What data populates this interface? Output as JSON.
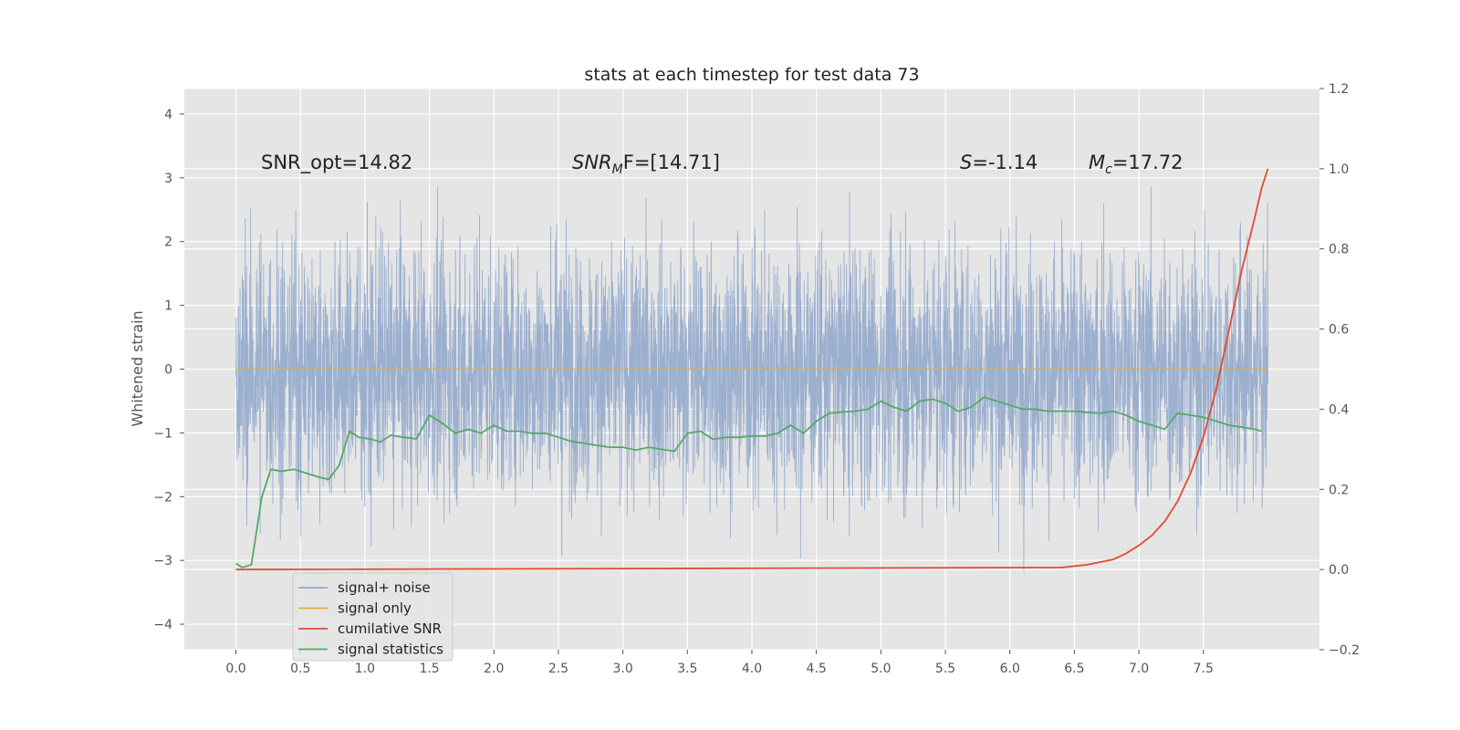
{
  "chart_data": {
    "type": "line",
    "title": "stats at each timestep for test data 73",
    "ylabel": "Whitened strain",
    "xlabel": "",
    "xlim": [
      -0.4,
      8.4
    ],
    "ylim": [
      -4.4,
      4.4
    ],
    "y2lim": [
      -0.2,
      1.2
    ],
    "grid": true,
    "legend_placement": "lower-left",
    "x_ticks": [
      "0.0",
      "0.5",
      "1.0",
      "1.5",
      "2.0",
      "2.5",
      "3.0",
      "3.5",
      "4.0",
      "4.5",
      "5.0",
      "5.5",
      "6.0",
      "6.5",
      "7.0",
      "7.5"
    ],
    "y_ticks": [
      "4",
      "3",
      "2",
      "1",
      "0",
      "−1",
      "−2",
      "−3",
      "−4"
    ],
    "y2_ticks": [
      "1.2",
      "1.0",
      "0.8",
      "0.6",
      "0.4",
      "0.2",
      "0.0",
      "−0.2"
    ],
    "annotations": {
      "snr_opt": "SNR_opt=14.82",
      "snr_mf_base": "SNR",
      "snr_mf_sub": "M",
      "snr_mf_tail": "F=[14.71]",
      "s_var": "S",
      "s_value": "=-1.14",
      "mc_base": "M",
      "mc_sub": "c",
      "mc_value": "=17.72"
    },
    "series": [
      {
        "name": "signal+ noise",
        "color": "#92a8cc",
        "axis": "left",
        "amplitude": 2.0,
        "x_range": [
          0.0,
          8.0
        ]
      },
      {
        "name": "signal only",
        "color": "#e5ae38",
        "axis": "left",
        "x": [
          0.0,
          8.0
        ],
        "values": [
          0.0,
          0.0
        ]
      },
      {
        "name": "cumilative SNR",
        "color": "#e24a33",
        "axis": "right",
        "x": [
          0.0,
          6.4,
          6.6,
          6.8,
          6.9,
          7.0,
          7.1,
          7.2,
          7.3,
          7.4,
          7.5,
          7.6,
          7.7,
          7.8,
          7.9,
          7.95,
          8.0
        ],
        "values": [
          0.0,
          0.005,
          0.012,
          0.025,
          0.04,
          0.06,
          0.085,
          0.12,
          0.17,
          0.24,
          0.33,
          0.45,
          0.6,
          0.75,
          0.88,
          0.95,
          1.0
        ]
      },
      {
        "name": "signal statistics",
        "color": "#55a868",
        "axis": "right",
        "x": [
          0.0,
          0.05,
          0.12,
          0.2,
          0.27,
          0.35,
          0.45,
          0.55,
          0.65,
          0.72,
          0.8,
          0.88,
          0.95,
          1.05,
          1.12,
          1.2,
          1.3,
          1.4,
          1.5,
          1.6,
          1.7,
          1.8,
          1.9,
          2.0,
          2.1,
          2.2,
          2.3,
          2.4,
          2.5,
          2.6,
          2.7,
          2.8,
          2.9,
          3.0,
          3.1,
          3.2,
          3.3,
          3.4,
          3.5,
          3.6,
          3.7,
          3.8,
          3.9,
          4.0,
          4.1,
          4.2,
          4.3,
          4.4,
          4.5,
          4.6,
          4.7,
          4.8,
          4.9,
          5.0,
          5.1,
          5.2,
          5.3,
          5.4,
          5.5,
          5.6,
          5.7,
          5.8,
          5.9,
          6.0,
          6.1,
          6.2,
          6.3,
          6.4,
          6.5,
          6.6,
          6.7,
          6.8,
          6.9,
          7.0,
          7.1,
          7.2,
          7.3,
          7.4,
          7.5,
          7.6,
          7.7,
          7.8,
          7.9,
          7.95
        ],
        "values": [
          0.015,
          0.005,
          0.012,
          0.18,
          0.25,
          0.245,
          0.25,
          0.24,
          0.23,
          0.225,
          0.26,
          0.345,
          0.33,
          0.325,
          0.318,
          0.335,
          0.33,
          0.326,
          0.385,
          0.365,
          0.34,
          0.35,
          0.34,
          0.36,
          0.345,
          0.345,
          0.34,
          0.34,
          0.33,
          0.32,
          0.315,
          0.31,
          0.305,
          0.305,
          0.298,
          0.305,
          0.3,
          0.295,
          0.34,
          0.345,
          0.325,
          0.33,
          0.33,
          0.333,
          0.333,
          0.34,
          0.36,
          0.34,
          0.37,
          0.39,
          0.393,
          0.395,
          0.4,
          0.42,
          0.405,
          0.395,
          0.42,
          0.425,
          0.415,
          0.395,
          0.405,
          0.43,
          0.42,
          0.41,
          0.4,
          0.4,
          0.395,
          0.395,
          0.395,
          0.392,
          0.39,
          0.395,
          0.385,
          0.37,
          0.36,
          0.35,
          0.39,
          0.385,
          0.38,
          0.37,
          0.36,
          0.355,
          0.35,
          0.345
        ]
      }
    ]
  }
}
